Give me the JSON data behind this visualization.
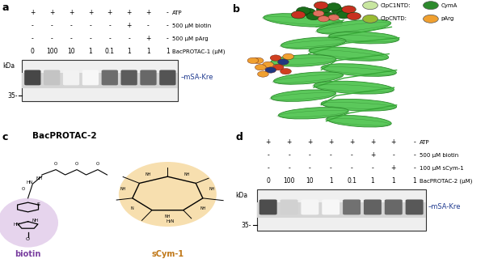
{
  "panel_a": {
    "label": "a",
    "title_rows": [
      "ATP",
      "500 μM biotin",
      "500 μM pArg",
      "BacPROTAC-1 (μM)"
    ],
    "col_signs": [
      [
        "+",
        "-",
        "-",
        "0"
      ],
      [
        "+",
        "-",
        "-",
        "100"
      ],
      [
        "+",
        "-",
        "-",
        "10"
      ],
      [
        "+",
        "-",
        "-",
        "1"
      ],
      [
        "+",
        "-",
        "-",
        "0.1"
      ],
      [
        "+",
        "+",
        "-",
        "1"
      ],
      [
        "+",
        "-",
        "+",
        "1"
      ],
      [
        "-",
        "-",
        "-",
        "1"
      ]
    ],
    "band_label": "mSA-Kre",
    "band_label_color": "#1f3a8f",
    "kda_label": "kDa",
    "marker_35": "35-",
    "band_intensities": [
      0.88,
      0.28,
      0.06,
      0.04,
      0.7,
      0.78,
      0.72,
      0.82
    ],
    "gel_bg": "#d8d8d8",
    "gel_bg2": "#f0f0f0"
  },
  "panel_b": {
    "label": "b",
    "legend_row1": [
      "ClpC1NTD:",
      "CymA"
    ],
    "legend_row2": [
      "ClpCNTD:",
      "pArg"
    ],
    "legend_colors": [
      "#c8e6a0",
      "#2d8a2d",
      "#99bb33",
      "#f0a030"
    ],
    "protein_color_light": "#6ec96e",
    "protein_color_dark": "#3aaa3a",
    "protein_color_shade": "#4dc94d",
    "cymA_color": "#1a6e1a",
    "cymA_red": "#c83020",
    "cymA_salmon": "#e07060",
    "parg_orange": "#f0a030",
    "parg_red": "#d04020",
    "parg_blue": "#203880"
  },
  "panel_c": {
    "label": "c",
    "title": "BacPROTAC-2",
    "biotin_label": "biotin",
    "biotin_color": "#7a3fa0",
    "scym_label": "sCym-1",
    "scym_color": "#c07818"
  },
  "panel_d": {
    "label": "d",
    "title_rows": [
      "ATP",
      "500 μM biotin",
      "100 μM sCym-1",
      "BacPROTAC-2 (μM)"
    ],
    "col_signs": [
      [
        "+",
        "-",
        "-",
        "0"
      ],
      [
        "+",
        "-",
        "-",
        "100"
      ],
      [
        "+",
        "-",
        "-",
        "10"
      ],
      [
        "+",
        "-",
        "-",
        "1"
      ],
      [
        "+",
        "-",
        "-",
        "0.1"
      ],
      [
        "+",
        "+",
        "-",
        "1"
      ],
      [
        "+",
        "-",
        "+",
        "1"
      ],
      [
        "-",
        "-",
        "-",
        "1"
      ]
    ],
    "band_label": "mSA-Kre",
    "band_label_color": "#1f3a8f",
    "kda_label": "kDa",
    "marker_35": "35-",
    "band_intensities": [
      0.85,
      0.22,
      0.05,
      0.04,
      0.68,
      0.75,
      0.72,
      0.8
    ],
    "gel_bg": "#d8d8d8",
    "gel_bg2": "#f0f0f0"
  },
  "figure_bg": "#ffffff",
  "fs": 5.5,
  "fs_panel": 9
}
